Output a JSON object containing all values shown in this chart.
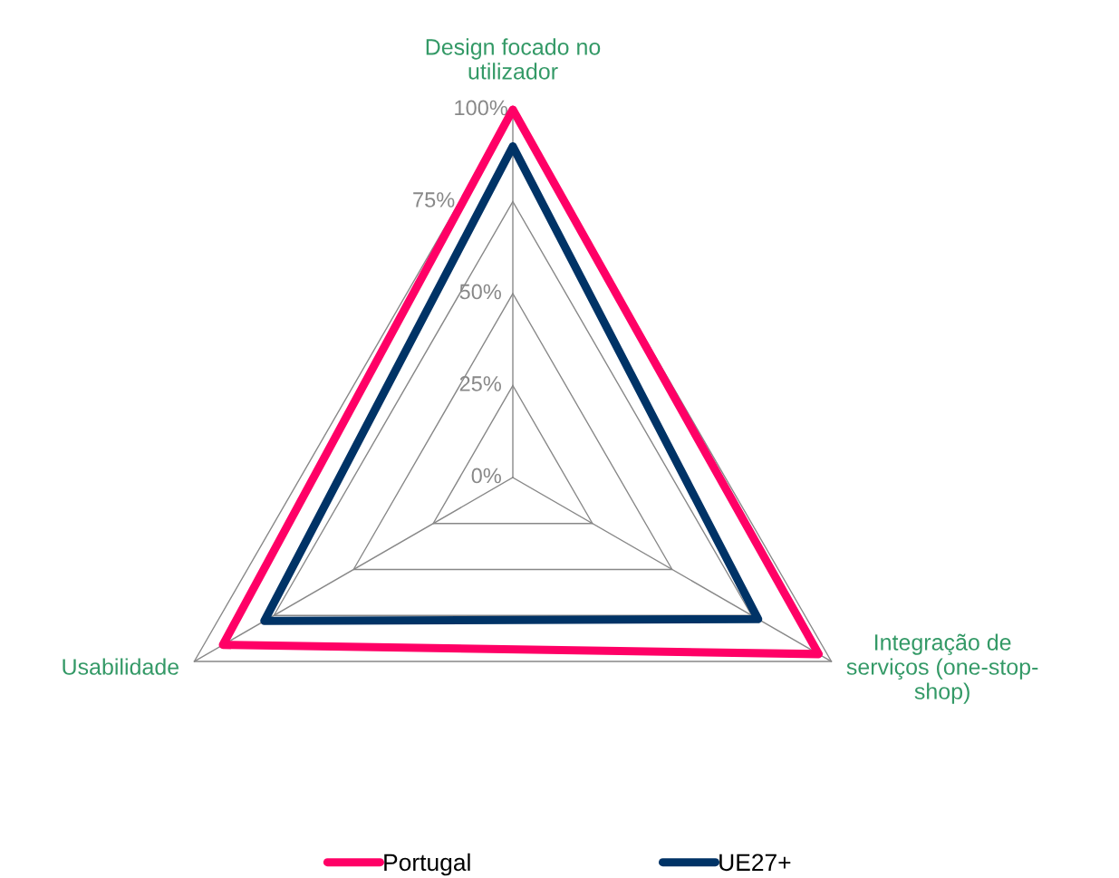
{
  "chart_data": {
    "type": "radar",
    "categories": [
      "Design focado no\nutilizador",
      "Integração de\nserviços (one-stop-\nshop)",
      "Usabilidade"
    ],
    "series": [
      {
        "name": "Portugal",
        "color": "#ff0066",
        "values": [
          100,
          96,
          91
        ]
      },
      {
        "name": "UE27+",
        "color": "#003366",
        "values": [
          90,
          77,
          78
        ]
      }
    ],
    "ylim": [
      0,
      100
    ],
    "yticks": [
      {
        "value": 0,
        "label": "0%"
      },
      {
        "value": 25,
        "label": "25%"
      },
      {
        "value": 50,
        "label": "50%"
      },
      {
        "value": 75,
        "label": "75%"
      },
      {
        "value": 100,
        "label": "100%"
      }
    ],
    "grid": true,
    "legend": "bottom",
    "marker": "none",
    "line_style": "solid"
  }
}
